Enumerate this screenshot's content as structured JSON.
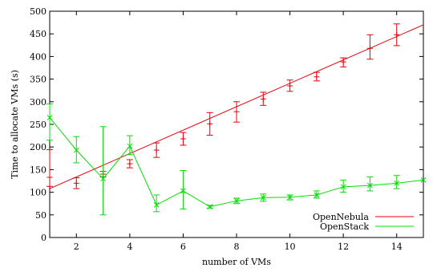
{
  "chart_data": {
    "type": "line",
    "xlabel": "number of VMs",
    "ylabel": "Time to allocate VMs (s)",
    "xlim": [
      1,
      15
    ],
    "ylim": [
      0,
      500
    ],
    "xticks": [
      2,
      4,
      6,
      8,
      10,
      12,
      14
    ],
    "yticks": [
      0,
      50,
      100,
      150,
      200,
      250,
      300,
      350,
      400,
      450,
      500
    ],
    "grid": false,
    "legend_position": "bottom-right",
    "series": [
      {
        "name": "OpenNebula",
        "color": "#e8000b",
        "marker": "plus",
        "x": [
          1,
          2,
          3,
          4,
          5,
          6,
          7,
          8,
          9,
          10,
          11,
          12,
          13,
          14
        ],
        "values": [
          133,
          120,
          140,
          163,
          193,
          218,
          251,
          278,
          306,
          335,
          355,
          388,
          418,
          448
        ],
        "err_low": [
          113,
          108,
          134,
          154,
          177,
          204,
          226,
          255,
          292,
          323,
          346,
          377,
          394,
          424
        ],
        "err_high": [
          194,
          132,
          146,
          172,
          209,
          232,
          276,
          300,
          321,
          348,
          365,
          397,
          448,
          472
        ],
        "fit_line": {
          "x": [
            1,
            15
          ],
          "y": [
            108,
            470
          ]
        }
      },
      {
        "name": "OpenStack",
        "color": "#00e000",
        "marker": "cross",
        "x": [
          1,
          2,
          3,
          4,
          5,
          6,
          7,
          8,
          9,
          10,
          11,
          12,
          13,
          14,
          15
        ],
        "values": [
          265,
          193,
          130,
          202,
          72,
          103,
          68,
          81,
          88,
          89,
          94,
          112,
          115,
          120,
          127
        ],
        "err_low": [
          215,
          165,
          50,
          183,
          57,
          63,
          65,
          75,
          80,
          83,
          87,
          100,
          103,
          108,
          127
        ],
        "err_high": [
          295,
          223,
          245,
          225,
          94,
          148,
          71,
          87,
          96,
          94,
          103,
          127,
          134,
          137,
          127
        ]
      }
    ]
  }
}
